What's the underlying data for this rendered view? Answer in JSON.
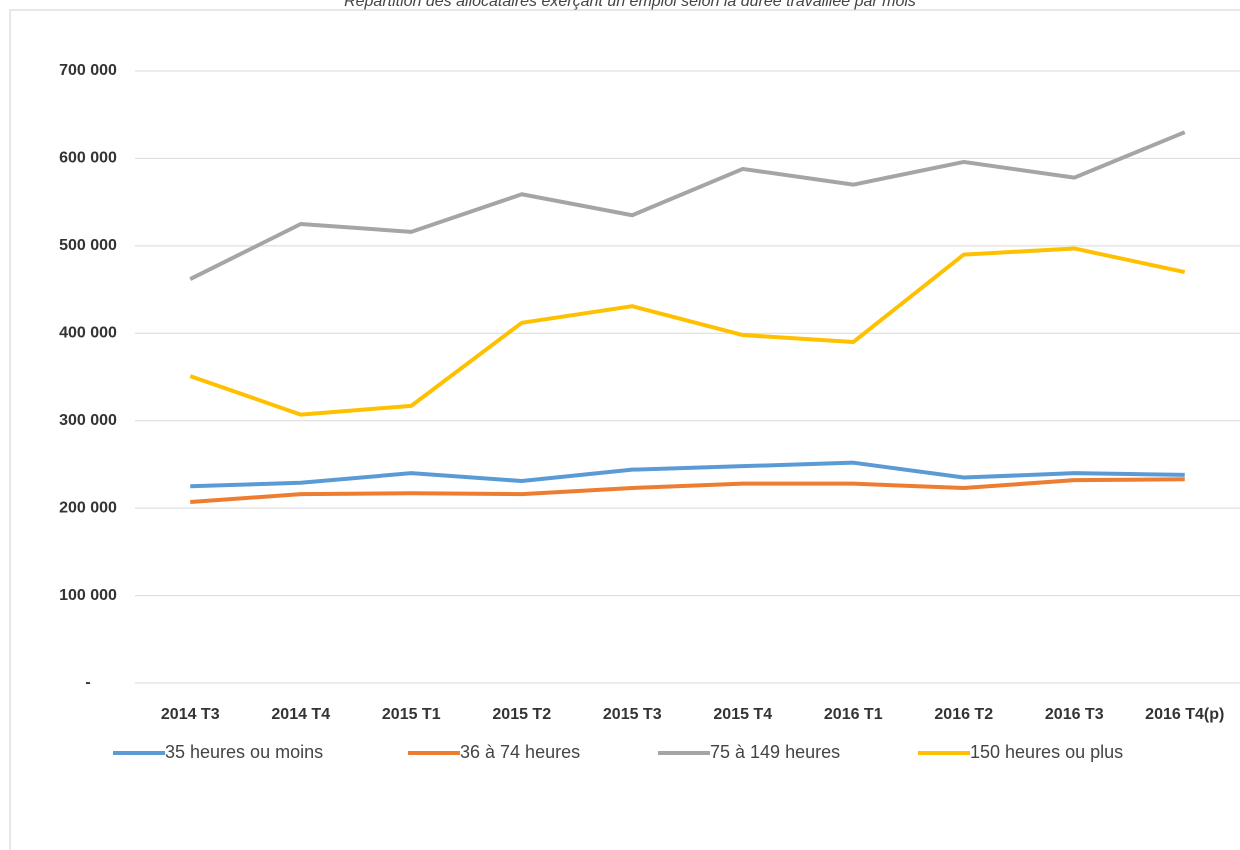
{
  "chart_data": {
    "type": "line",
    "title": "Répartition des allocataires exerçant un emploi selon la durée travaillée par mois",
    "categories": [
      "2014 T3",
      "2014 T4",
      "2015 T1",
      "2015 T2",
      "2015 T3",
      "2015 T4",
      "2016 T1",
      "2016 T2",
      "2016 T3",
      "2016 T4(p)"
    ],
    "series": [
      {
        "name": "35 heures ou moins",
        "color": "#5b9bd5",
        "values": [
          225000,
          229000,
          240000,
          231000,
          244000,
          248000,
          252000,
          235000,
          240000,
          238000
        ]
      },
      {
        "name": "36 à 74 heures",
        "color": "#ed7d31",
        "values": [
          207000,
          216000,
          217000,
          216000,
          223000,
          228000,
          228000,
          223000,
          232000,
          233000
        ]
      },
      {
        "name": "75 à 149 heures",
        "color": "#a5a5a5",
        "values": [
          462000,
          525000,
          516000,
          559000,
          535000,
          588000,
          570000,
          596000,
          578000,
          630000
        ]
      },
      {
        "name": "150 heures ou plus",
        "color": "#ffc000",
        "values": [
          351000,
          307000,
          317000,
          412000,
          431000,
          398000,
          390000,
          490000,
          497000,
          470000
        ]
      }
    ],
    "ylim": [
      0,
      700000
    ],
    "yticks": [
      {
        "value": 0,
        "label": "-"
      },
      {
        "value": 100000,
        "label": "100 000"
      },
      {
        "value": 200000,
        "label": "200 000"
      },
      {
        "value": 300000,
        "label": "300 000"
      },
      {
        "value": 400000,
        "label": "400 000"
      },
      {
        "value": 500000,
        "label": "500 000"
      },
      {
        "value": 600000,
        "label": "600 000"
      },
      {
        "value": 700000,
        "label": "700 000"
      }
    ],
    "grid": true,
    "legend": "bottom"
  }
}
